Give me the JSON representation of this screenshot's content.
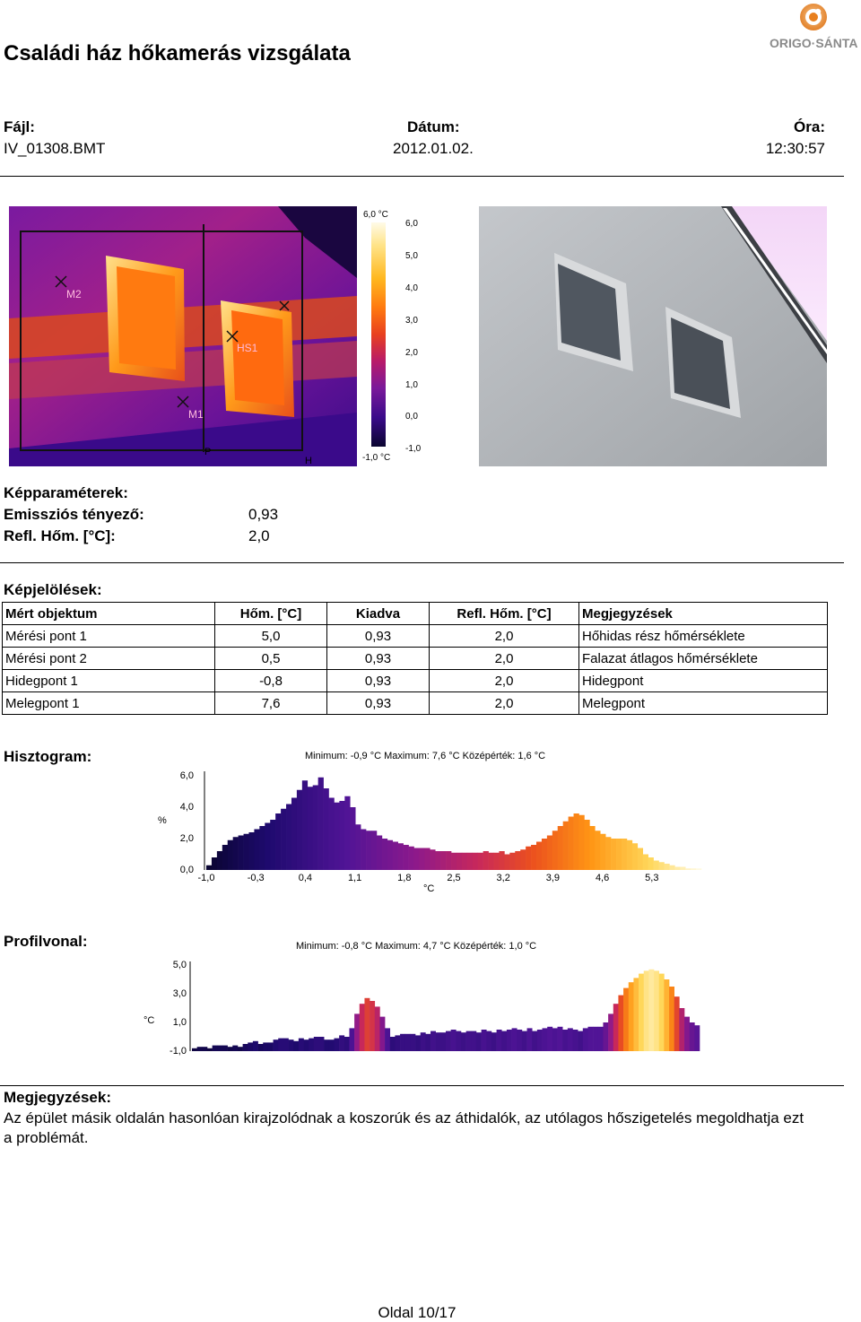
{
  "header": {
    "title": "Családi ház hőkamerás vizsgálata",
    "logo_text": "ORIGO·SÁNTA"
  },
  "file": {
    "file_label": "Fájl:",
    "file_value": "IV_01308.BMT",
    "date_label": "Dátum:",
    "date_value": "2012.01.02.",
    "time_label": "Óra:",
    "time_value": "12:30:57"
  },
  "thermal": {
    "scale_top": "6,0 °C",
    "scale_bottom": "-1,0 °C",
    "scale_ticks": [
      "6,0",
      "5,0",
      "4,0",
      "3,0",
      "2,0",
      "1,0",
      "0,0",
      "-1,0"
    ],
    "markers": [
      "M2",
      "HS1",
      "M1",
      "P",
      "H"
    ]
  },
  "params": {
    "title": "Képparaméterek:",
    "emis_label": "Emissziós tényező:",
    "emis_value": "0,93",
    "refl_label": "Refl. Hőm. [°C]:",
    "refl_value": "2,0"
  },
  "marks": {
    "title": "Képjelölések:",
    "headers": [
      "Mért objektum",
      "Hőm. [°C]",
      "Kiadva",
      "Refl. Hőm. [°C]",
      "Megjegyzések"
    ],
    "rows": [
      [
        "Mérési pont 1",
        "5,0",
        "0,93",
        "2,0",
        "Hőhidas rész hőmérséklete"
      ],
      [
        "Mérési pont 2",
        "0,5",
        "0,93",
        "2,0",
        "Falazat átlagos hőmérséklete"
      ],
      [
        "Hidegpont 1",
        "-0,8",
        "0,93",
        "2,0",
        "Hidegpont"
      ],
      [
        "Melegpont 1",
        "7,6",
        "0,93",
        "2,0",
        "Melegpont"
      ]
    ]
  },
  "histogram": {
    "title": "Hisztogram:",
    "summary": "Minimum: -0,9 °C Maximum: 7,6 °C Középérték: 1,6 °C",
    "y_unit": "%",
    "x_unit": "°C",
    "y_ticks": [
      "6,0",
      "4,0",
      "2,0",
      "0,0"
    ],
    "x_ticks": [
      "-1,0",
      "-0,3",
      "0,4",
      "1,1",
      "1,8",
      "2,5",
      "3,2",
      "3,9",
      "4,6",
      "5,3"
    ]
  },
  "profile": {
    "title": "Profilvonal:",
    "summary": "Minimum: -0,8 °C Maximum: 4,7 °C Középérték: 1,0 °C",
    "y_unit": "°C",
    "y_ticks": [
      "5,0",
      "3,0",
      "1,0",
      "-1,0"
    ]
  },
  "notes": {
    "title": "Megjegyzések:",
    "text": "Az épület másik oldalán hasonlóan kirajzolódnak a koszorúk és az áthidalók, az utólagos hőszigetelés megoldhatja ezt a problémát."
  },
  "footer": {
    "page": "Oldal 10/17"
  },
  "chart_data": [
    {
      "type": "bar",
      "title": "Minimum: -0,9 °C Maximum: 7,6 °C Középérték: 1,6 °C",
      "xlabel": "°C",
      "ylabel": "%",
      "ylim": [
        0,
        6
      ],
      "x_range": [
        -1.0,
        6.0
      ],
      "series": [
        {
          "values": [
            0.3,
            0.8,
            1.2,
            1.6,
            1.9,
            2.1,
            2.2,
            2.3,
            2.4,
            2.6,
            2.8,
            3.0,
            3.2,
            3.6,
            3.9,
            4.2,
            4.6,
            5.1,
            5.7,
            5.3,
            5.4,
            5.9,
            5.2,
            4.6,
            4.3,
            4.4,
            4.7,
            4.0,
            2.9,
            2.6,
            2.5,
            2.5,
            2.2,
            2.0,
            1.9,
            1.8,
            1.7,
            1.6,
            1.5,
            1.4,
            1.4,
            1.4,
            1.3,
            1.2,
            1.2,
            1.2,
            1.1,
            1.1,
            1.1,
            1.1,
            1.1,
            1.1,
            1.2,
            1.1,
            1.1,
            1.2,
            1.0,
            1.1,
            1.2,
            1.3,
            1.5,
            1.6,
            1.8,
            2.0,
            2.2,
            2.5,
            2.8,
            3.1,
            3.4,
            3.6,
            3.5,
            3.2,
            2.8,
            2.5,
            2.3,
            2.1,
            2.0,
            2.0,
            2.0,
            1.9,
            1.7,
            1.4,
            1.0,
            0.8,
            0.6,
            0.5,
            0.4,
            0.3,
            0.2,
            0.2,
            0.1,
            0.1,
            0.1
          ]
        }
      ]
    },
    {
      "type": "bar",
      "title": "Minimum: -0,8 °C Maximum: 4,7 °C Középérték: 1,0 °C",
      "ylabel": "°C",
      "ylim": [
        -1,
        5
      ],
      "series": [
        {
          "values": [
            -0.8,
            -0.7,
            -0.7,
            -0.8,
            -0.6,
            -0.6,
            -0.6,
            -0.7,
            -0.6,
            -0.7,
            -0.5,
            -0.4,
            -0.3,
            -0.5,
            -0.4,
            -0.4,
            -0.2,
            -0.1,
            -0.1,
            -0.2,
            -0.3,
            -0.1,
            -0.2,
            -0.1,
            0.0,
            0.0,
            -0.2,
            -0.2,
            -0.1,
            0.1,
            0.0,
            0.6,
            1.6,
            2.3,
            2.7,
            2.5,
            2.1,
            1.4,
            0.6,
            0.0,
            0.1,
            0.2,
            0.2,
            0.2,
            0.1,
            0.3,
            0.2,
            0.4,
            0.3,
            0.3,
            0.4,
            0.5,
            0.4,
            0.3,
            0.4,
            0.4,
            0.3,
            0.5,
            0.4,
            0.3,
            0.5,
            0.4,
            0.5,
            0.6,
            0.5,
            0.4,
            0.6,
            0.4,
            0.5,
            0.6,
            0.7,
            0.6,
            0.7,
            0.5,
            0.6,
            0.5,
            0.4,
            0.6,
            0.7,
            0.7,
            0.7,
            1.0,
            1.6,
            2.3,
            2.9,
            3.4,
            3.8,
            4.1,
            4.4,
            4.6,
            4.7,
            4.6,
            4.4,
            4.0,
            3.5,
            2.8,
            2.0,
            1.4,
            1.0,
            0.8
          ]
        }
      ]
    }
  ]
}
